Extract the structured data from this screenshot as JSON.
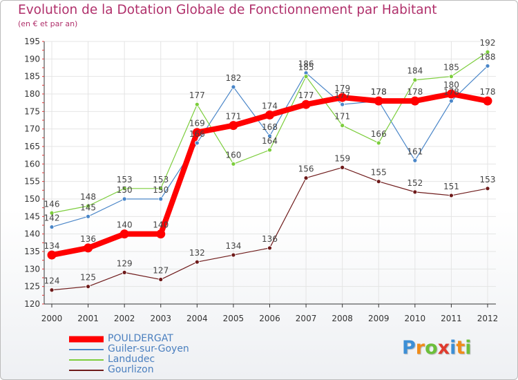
{
  "title": "Evolution de la Dotation Globale de Fonctionnement par Habitant",
  "subtitle": "(en € et par an)",
  "logo": {
    "text": "Proxiti",
    "letters": [
      {
        "ch": "P",
        "color": "#3c8fd6"
      },
      {
        "ch": "r",
        "color": "#f08c1a"
      },
      {
        "ch": "o",
        "color": "#6cbf3a"
      },
      {
        "ch": "x",
        "color": "#e03b2e"
      },
      {
        "ch": "i",
        "color": "#3c8fd6"
      },
      {
        "ch": "t",
        "color": "#f08c1a"
      },
      {
        "ch": "i",
        "color": "#6cbf3a"
      }
    ]
  },
  "chart_data": {
    "type": "line",
    "title": "Evolution de la Dotation Globale de Fonctionnement par Habitant",
    "subtitle": "(en € et par an)",
    "x": [
      "2000",
      "2001",
      "2002",
      "2003",
      "2004",
      "2005",
      "2006",
      "2007",
      "2008",
      "2009",
      "2010",
      "2011",
      "2012"
    ],
    "ylim": [
      120,
      195
    ],
    "yticks": [
      120,
      125,
      130,
      135,
      140,
      145,
      150,
      155,
      160,
      165,
      170,
      175,
      180,
      185,
      190,
      195
    ],
    "grid": true,
    "legend_position": "bottom-left",
    "series": [
      {
        "name": "Guiler-sur-Goyen",
        "color": "#4a86c8",
        "width": 1.2,
        "values": [
          142,
          145,
          150,
          150,
          166,
          182,
          168,
          186,
          177,
          178,
          161,
          178,
          188
        ]
      },
      {
        "name": "Landudec",
        "color": "#7ccd3c",
        "width": 1.2,
        "values": [
          146,
          148,
          153,
          153,
          177,
          160,
          164,
          185,
          171,
          166,
          184,
          185,
          192
        ]
      },
      {
        "name": "Gourlizon",
        "color": "#6e1a1a",
        "width": 1.2,
        "values": [
          124,
          125,
          129,
          127,
          132,
          134,
          136,
          156,
          159,
          155,
          152,
          151,
          153
        ]
      },
      {
        "name": "POULDERGAT",
        "color": "#ff0000",
        "width": 8,
        "values": [
          134,
          136,
          140,
          140,
          169,
          171,
          174,
          177,
          179,
          178,
          178,
          180,
          178
        ]
      }
    ],
    "legend_order": [
      "POULDERGAT",
      "Guiler-sur-Goyen",
      "Landudec",
      "Gourlizon"
    ]
  }
}
